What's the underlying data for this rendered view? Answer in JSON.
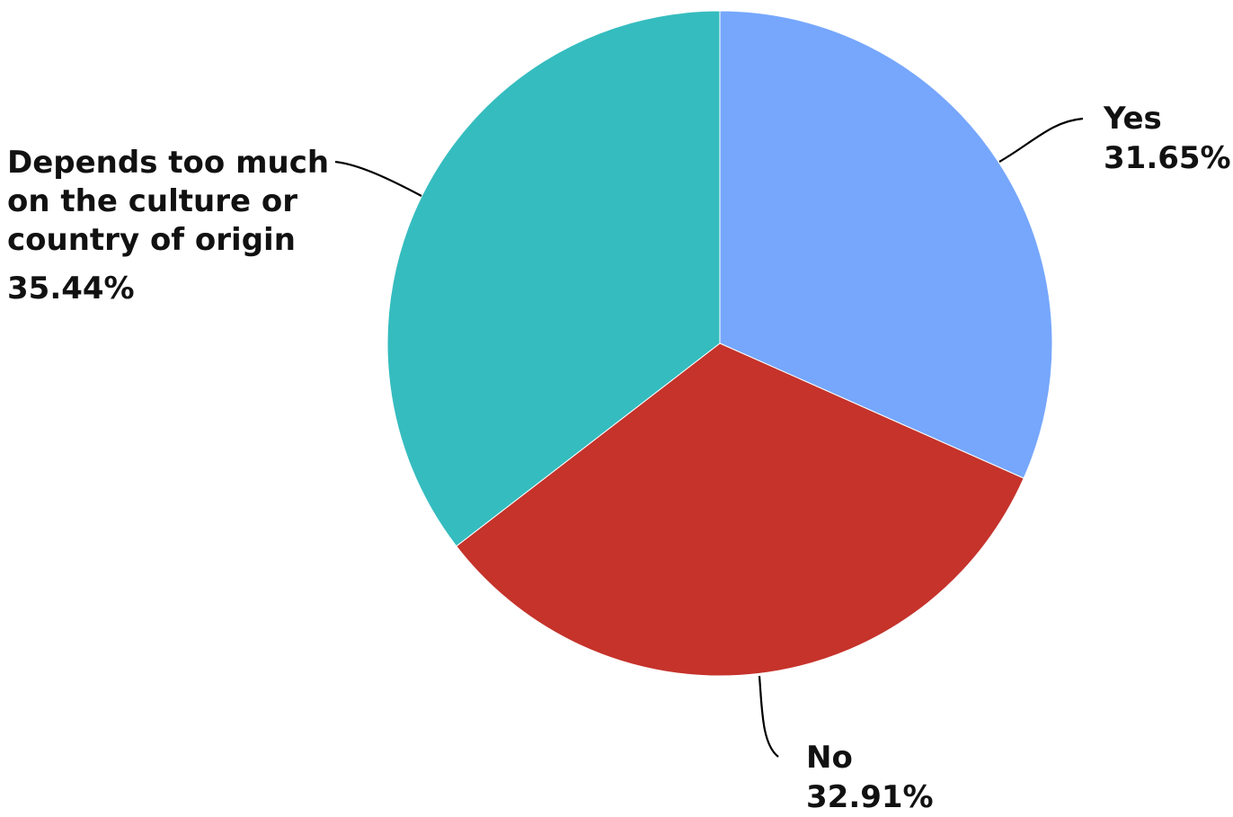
{
  "chart_data": {
    "type": "pie",
    "start_angle_deg": 0,
    "direction": "clockwise",
    "slices": [
      {
        "label": "Yes",
        "value": 31.65,
        "value_label": "31.65%",
        "color": "#76a7fd"
      },
      {
        "label": "No",
        "value": 32.91,
        "value_label": "32.91%",
        "color": "#c5332b"
      },
      {
        "label_lines": [
          "Depends too much",
          "on the culture or",
          "country of origin"
        ],
        "value": 35.44,
        "value_label": "35.44%",
        "color": "#35bcbf"
      }
    ]
  }
}
